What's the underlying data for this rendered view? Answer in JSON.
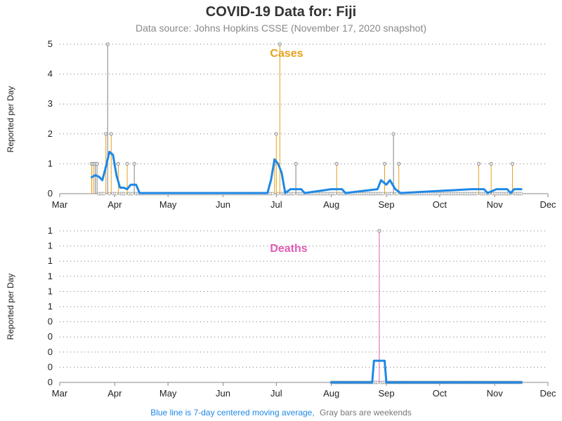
{
  "header": {
    "title": "COVID-19 Data for: Fiji",
    "subtitle": "Data source: Johns Hopkins CSSE (November 17, 2020 snapshot)"
  },
  "footer": {
    "blue_note": "Blue line is 7-day centered moving average,",
    "gray_note": "Gray bars are weekends"
  },
  "colors": {
    "cases": "#E5A11A",
    "deaths": "#E05CB5",
    "weekend": "#808080",
    "average": "#1E88E5",
    "axis": "#888888",
    "grid": "#777777"
  },
  "chart_data": [
    {
      "type": "bar",
      "title": "Cases",
      "ylabel": "Reported per Day",
      "x_ticks": [
        "Mar",
        "Apr",
        "May",
        "Jun",
        "Jul",
        "Aug",
        "Sep",
        "Oct",
        "Nov",
        "Dec"
      ],
      "y_ticks": [
        "0",
        "1",
        "2",
        "3",
        "4",
        "5"
      ],
      "ylim": [
        0,
        5
      ],
      "xlim": [
        "2020-03-01",
        "2020-12-01"
      ],
      "grid": true,
      "zero_dots_range": [
        "2020-03-19",
        "2020-11-16"
      ],
      "series": [
        {
          "values": [
            {
              "date": "2020-03-19",
              "value": 1
            },
            {
              "date": "2020-03-20",
              "value": 1
            },
            {
              "date": "2020-03-21",
              "value": 1,
              "weekend": true
            },
            {
              "date": "2020-03-22",
              "value": 1,
              "weekend": true
            },
            {
              "date": "2020-03-27",
              "value": 2
            },
            {
              "date": "2020-03-28",
              "value": 5,
              "weekend": true
            },
            {
              "date": "2020-03-30",
              "value": 2
            },
            {
              "date": "2020-04-03",
              "value": 1
            },
            {
              "date": "2020-04-08",
              "value": 1
            },
            {
              "date": "2020-04-12",
              "value": 1,
              "weekend": true
            },
            {
              "date": "2020-06-30",
              "value": 1
            },
            {
              "date": "2020-07-01",
              "value": 2
            },
            {
              "date": "2020-07-03",
              "value": 5
            },
            {
              "date": "2020-07-12",
              "value": 1,
              "weekend": true
            },
            {
              "date": "2020-08-04",
              "value": 1
            },
            {
              "date": "2020-08-31",
              "value": 1
            },
            {
              "date": "2020-09-05",
              "value": 2,
              "weekend": true
            },
            {
              "date": "2020-09-08",
              "value": 1
            },
            {
              "date": "2020-10-23",
              "value": 1
            },
            {
              "date": "2020-10-30",
              "value": 1
            },
            {
              "date": "2020-11-11",
              "value": 1
            }
          ]
        },
        {
          "name": "7-day centered moving average",
          "type": "line",
          "values": [
            {
              "date": "2020-03-19",
              "value": 0.55
            },
            {
              "date": "2020-03-21",
              "value": 0.62
            },
            {
              "date": "2020-03-23",
              "value": 0.57
            },
            {
              "date": "2020-03-25",
              "value": 0.45
            },
            {
              "date": "2020-03-27",
              "value": 0.9
            },
            {
              "date": "2020-03-29",
              "value": 1.4
            },
            {
              "date": "2020-03-31",
              "value": 1.3
            },
            {
              "date": "2020-04-02",
              "value": 0.6
            },
            {
              "date": "2020-04-04",
              "value": 0.2
            },
            {
              "date": "2020-04-06",
              "value": 0.2
            },
            {
              "date": "2020-04-08",
              "value": 0.15
            },
            {
              "date": "2020-04-10",
              "value": 0.3
            },
            {
              "date": "2020-04-13",
              "value": 0.3
            },
            {
              "date": "2020-04-15",
              "value": 0.02
            },
            {
              "date": "2020-06-26",
              "value": 0.02
            },
            {
              "date": "2020-06-28",
              "value": 0.45
            },
            {
              "date": "2020-06-30",
              "value": 1.15
            },
            {
              "date": "2020-07-02",
              "value": 1.0
            },
            {
              "date": "2020-07-04",
              "value": 0.7
            },
            {
              "date": "2020-07-06",
              "value": 0.02
            },
            {
              "date": "2020-07-09",
              "value": 0.15
            },
            {
              "date": "2020-07-15",
              "value": 0.15
            },
            {
              "date": "2020-07-17",
              "value": 0.02
            },
            {
              "date": "2020-08-01",
              "value": 0.15
            },
            {
              "date": "2020-08-07",
              "value": 0.15
            },
            {
              "date": "2020-08-09",
              "value": 0.02
            },
            {
              "date": "2020-08-27",
              "value": 0.15
            },
            {
              "date": "2020-08-29",
              "value": 0.45
            },
            {
              "date": "2020-09-01",
              "value": 0.3
            },
            {
              "date": "2020-09-03",
              "value": 0.45
            },
            {
              "date": "2020-09-06",
              "value": 0.15
            },
            {
              "date": "2020-09-09",
              "value": 0.02
            },
            {
              "date": "2020-10-19",
              "value": 0.15
            },
            {
              "date": "2020-10-26",
              "value": 0.15
            },
            {
              "date": "2020-10-28",
              "value": 0.02
            },
            {
              "date": "2020-11-02",
              "value": 0.15
            },
            {
              "date": "2020-11-08",
              "value": 0.15
            },
            {
              "date": "2020-11-10",
              "value": 0.02
            },
            {
              "date": "2020-11-12",
              "value": 0.15
            },
            {
              "date": "2020-11-16",
              "value": 0.15
            }
          ]
        }
      ]
    },
    {
      "type": "bar",
      "title": "Deaths",
      "ylabel": "Reported per Day",
      "x_ticks": [
        "Mar",
        "Apr",
        "May",
        "Jun",
        "Jul",
        "Aug",
        "Sep",
        "Oct",
        "Nov",
        "Dec"
      ],
      "y_ticks": [
        "0",
        "0",
        "0",
        "0",
        "0",
        "1",
        "1",
        "1",
        "1",
        "1",
        "1"
      ],
      "ylim": [
        0,
        1
      ],
      "xlim": [
        "2020-03-01",
        "2020-12-01"
      ],
      "grid": true,
      "zero_dots_range": [
        "2020-08-01",
        "2020-11-16"
      ],
      "series": [
        {
          "values": [
            {
              "date": "2020-08-28",
              "value": 1
            }
          ]
        },
        {
          "name": "7-day centered moving average",
          "type": "line",
          "values": [
            {
              "date": "2020-08-01",
              "value": 0
            },
            {
              "date": "2020-08-24",
              "value": 0
            },
            {
              "date": "2020-08-25",
              "value": 0.143
            },
            {
              "date": "2020-08-31",
              "value": 0.143
            },
            {
              "date": "2020-09-01",
              "value": 0
            },
            {
              "date": "2020-11-16",
              "value": 0
            }
          ]
        }
      ]
    }
  ]
}
